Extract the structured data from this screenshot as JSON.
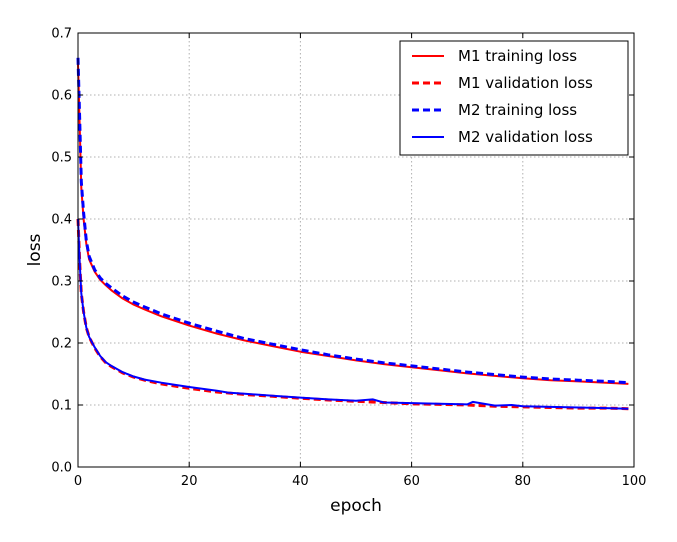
{
  "chart_data": {
    "type": "line",
    "xlabel": "epoch",
    "ylabel": "loss",
    "xlim": [
      0,
      100
    ],
    "ylim": [
      0.0,
      0.7
    ],
    "xticks": [
      "0",
      "20",
      "40",
      "60",
      "80",
      "100"
    ],
    "yticks": [
      "0.0",
      "0.1",
      "0.2",
      "0.3",
      "0.4",
      "0.5",
      "0.6",
      "0.7"
    ],
    "grid": true,
    "legend_position": "top-right",
    "series": [
      {
        "name": "M1 training loss",
        "color": "#ff0000",
        "style": "solid",
        "x": [
          0,
          0.3,
          0.6,
          1,
          1.5,
          2,
          3,
          4,
          5,
          6,
          8,
          10,
          12,
          15,
          20,
          25,
          30,
          35,
          40,
          45,
          50,
          55,
          60,
          65,
          70,
          75,
          80,
          85,
          90,
          95,
          99
        ],
        "y": [
          0.65,
          0.55,
          0.45,
          0.4,
          0.36,
          0.335,
          0.315,
          0.302,
          0.293,
          0.285,
          0.272,
          0.262,
          0.254,
          0.243,
          0.228,
          0.215,
          0.204,
          0.195,
          0.186,
          0.179,
          0.172,
          0.166,
          0.161,
          0.156,
          0.151,
          0.147,
          0.143,
          0.14,
          0.138,
          0.136,
          0.134
        ]
      },
      {
        "name": "M1 validation loss",
        "color": "#ff0000",
        "style": "dashed",
        "x": [
          0,
          0.3,
          0.6,
          1,
          1.5,
          2,
          3,
          4,
          5,
          6,
          8,
          10,
          12,
          15,
          20,
          25,
          30,
          35,
          40,
          45,
          50,
          55,
          60,
          65,
          70,
          75,
          80,
          85,
          90,
          95,
          99
        ],
        "y": [
          0.4,
          0.33,
          0.28,
          0.25,
          0.225,
          0.21,
          0.192,
          0.178,
          0.168,
          0.162,
          0.152,
          0.145,
          0.14,
          0.134,
          0.127,
          0.121,
          0.117,
          0.114,
          0.111,
          0.108,
          0.106,
          0.104,
          0.102,
          0.101,
          0.1,
          0.098,
          0.097,
          0.096,
          0.095,
          0.095,
          0.094
        ]
      },
      {
        "name": "M2 training loss",
        "color": "#0000ff",
        "style": "dashed",
        "x": [
          0,
          0.3,
          0.6,
          1,
          1.5,
          2,
          3,
          4,
          5,
          6,
          8,
          10,
          12,
          15,
          20,
          25,
          30,
          35,
          40,
          45,
          50,
          55,
          60,
          65,
          70,
          75,
          80,
          85,
          90,
          95,
          99
        ],
        "y": [
          0.66,
          0.56,
          0.46,
          0.41,
          0.365,
          0.34,
          0.318,
          0.305,
          0.296,
          0.289,
          0.276,
          0.266,
          0.258,
          0.247,
          0.232,
          0.219,
          0.207,
          0.198,
          0.189,
          0.181,
          0.174,
          0.168,
          0.163,
          0.158,
          0.153,
          0.149,
          0.145,
          0.142,
          0.14,
          0.138,
          0.136
        ]
      },
      {
        "name": "M2 validation loss",
        "color": "#0000ff",
        "style": "solid",
        "x": [
          0,
          0.3,
          0.6,
          1,
          1.5,
          2,
          3,
          4,
          5,
          6,
          8,
          10,
          12,
          15,
          20,
          25,
          27,
          30,
          35,
          40,
          45,
          50,
          53,
          55,
          60,
          65,
          70,
          71,
          75,
          78,
          80,
          85,
          90,
          95,
          99
        ],
        "y": [
          0.4,
          0.33,
          0.28,
          0.25,
          0.225,
          0.21,
          0.193,
          0.179,
          0.169,
          0.163,
          0.153,
          0.146,
          0.141,
          0.136,
          0.129,
          0.123,
          0.12,
          0.118,
          0.115,
          0.112,
          0.109,
          0.107,
          0.109,
          0.104,
          0.103,
          0.102,
          0.101,
          0.105,
          0.099,
          0.1,
          0.098,
          0.097,
          0.096,
          0.095,
          0.094
        ]
      }
    ]
  }
}
